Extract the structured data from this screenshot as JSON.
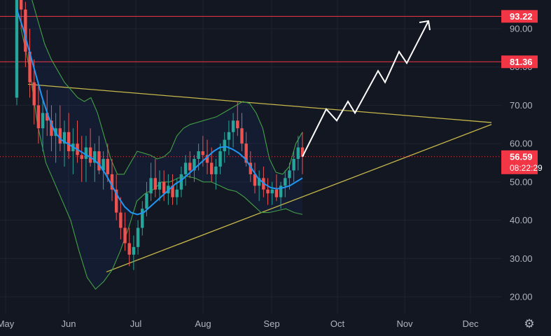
{
  "chart_data": {
    "type": "candlestick",
    "x_axis": {
      "labels": [
        "May",
        "Jun",
        "Jul",
        "Aug",
        "Sep",
        "Oct",
        "Nov",
        "Dec"
      ]
    },
    "y_axis": {
      "ticks": [
        "20.00",
        "30.00",
        "40.00",
        "50.00",
        "60.00",
        "70.00",
        "80.00",
        "90.00"
      ],
      "range": [
        15,
        97
      ]
    },
    "levels": [
      {
        "value": 93.22,
        "label": "93.22",
        "color": "#f23645"
      },
      {
        "value": 81.36,
        "label": "81.36",
        "color": "#f23645"
      }
    ],
    "last_price": {
      "value": 56.59,
      "label": "56.59",
      "countdown": "08:22:29",
      "color": "#f23645"
    },
    "candles_ohlc": [
      [
        72,
        100,
        70,
        98
      ],
      [
        98,
        100,
        90,
        95
      ],
      [
        95,
        97,
        80,
        84
      ],
      [
        84,
        90,
        72,
        76
      ],
      [
        76,
        82,
        65,
        70
      ],
      [
        70,
        76,
        60,
        64
      ],
      [
        64,
        72,
        58,
        68
      ],
      [
        68,
        74,
        62,
        66
      ],
      [
        66,
        70,
        58,
        62
      ],
      [
        62,
        68,
        55,
        64
      ],
      [
        64,
        70,
        58,
        60
      ],
      [
        60,
        66,
        54,
        63
      ],
      [
        63,
        68,
        56,
        58
      ],
      [
        58,
        64,
        52,
        60
      ],
      [
        60,
        66,
        55,
        57
      ],
      [
        57,
        62,
        50,
        56
      ],
      [
        56,
        62,
        50,
        59
      ],
      [
        59,
        64,
        54,
        55
      ],
      [
        55,
        60,
        50,
        58
      ],
      [
        58,
        62,
        52,
        53
      ],
      [
        53,
        58,
        48,
        56
      ],
      [
        56,
        60,
        50,
        52
      ],
      [
        52,
        56,
        45,
        48
      ],
      [
        48,
        52,
        40,
        42
      ],
      [
        42,
        46,
        35,
        38
      ],
      [
        38,
        42,
        32,
        34
      ],
      [
        34,
        38,
        28,
        31
      ],
      [
        31,
        36,
        27,
        33
      ],
      [
        33,
        40,
        31,
        38
      ],
      [
        38,
        45,
        36,
        43
      ],
      [
        43,
        50,
        41,
        47
      ],
      [
        47,
        55,
        45,
        51
      ],
      [
        51,
        56,
        46,
        48
      ],
      [
        48,
        53,
        45,
        50
      ],
      [
        50,
        53,
        45,
        47
      ],
      [
        47,
        52,
        44,
        49
      ],
      [
        49,
        52,
        44,
        46
      ],
      [
        46,
        51,
        44,
        48
      ],
      [
        48,
        54,
        46,
        52
      ],
      [
        52,
        57,
        49,
        55
      ],
      [
        55,
        58,
        51,
        53
      ],
      [
        53,
        57,
        50,
        56
      ],
      [
        56,
        60,
        53,
        58
      ],
      [
        58,
        62,
        54,
        57
      ],
      [
        57,
        61,
        52,
        55
      ],
      [
        55,
        59,
        50,
        52
      ],
      [
        52,
        56,
        48,
        54
      ],
      [
        54,
        60,
        52,
        58
      ],
      [
        58,
        63,
        55,
        61
      ],
      [
        61,
        66,
        57,
        63
      ],
      [
        63,
        68,
        59,
        66
      ],
      [
        66,
        71,
        62,
        64
      ],
      [
        64,
        68,
        58,
        60
      ],
      [
        60,
        63,
        54,
        55
      ],
      [
        55,
        58,
        50,
        52
      ],
      [
        52,
        55,
        47,
        49
      ],
      [
        49,
        53,
        45,
        51
      ],
      [
        51,
        54,
        46,
        48
      ],
      [
        48,
        51,
        44,
        47
      ],
      [
        47,
        50,
        44,
        48
      ],
      [
        48,
        52,
        45,
        46
      ],
      [
        46,
        50,
        43,
        49
      ],
      [
        49,
        53,
        46,
        51
      ],
      [
        51,
        55,
        48,
        53
      ],
      [
        53,
        58,
        50,
        56
      ],
      [
        56,
        62,
        53,
        59
      ],
      [
        59,
        63,
        52,
        56.59
      ]
    ],
    "ma_line": [
      95,
      90,
      84,
      78,
      72,
      67,
      63,
      61,
      60,
      59,
      58,
      57,
      56,
      54.5,
      52,
      49,
      46,
      43.5,
      42,
      41.5,
      42,
      43.5,
      45,
      46.5,
      48,
      49.5,
      50.5,
      52,
      53.5,
      55,
      56.5,
      58,
      59,
      59.2,
      58.5,
      57.5,
      56,
      53.5,
      51,
      49.5,
      48.5,
      48.2,
      48.5,
      49,
      50,
      51
    ],
    "upper_band": [
      100,
      100,
      98,
      92,
      86,
      82,
      79,
      76,
      74,
      72,
      71,
      72,
      68,
      62,
      56,
      52,
      52,
      55,
      58,
      57.5,
      57,
      56,
      56.5,
      58,
      62,
      64,
      65,
      65.5,
      66,
      66.5,
      67,
      68,
      69,
      70,
      71,
      70.5,
      68,
      64,
      56,
      52.5,
      52,
      54,
      60,
      63
    ],
    "lower_band": [
      90,
      80,
      65,
      55,
      50,
      45,
      40,
      32,
      25,
      22,
      24,
      27,
      32,
      38,
      45,
      47,
      48,
      50,
      50,
      51,
      51.5,
      51,
      50,
      50,
      49,
      48,
      47.5,
      46,
      44,
      42,
      42,
      42.5,
      43,
      42,
      41.5
    ],
    "projection": [
      [
        56.59
      ],
      [
        69
      ],
      [
        66
      ],
      [
        71
      ],
      [
        68
      ],
      [
        79
      ],
      [
        76
      ],
      [
        84
      ],
      [
        81
      ],
      [
        92
      ]
    ],
    "triangle": {
      "upper": [
        [
          75.5
        ],
        [
          65.5
        ]
      ],
      "lower": [
        [
          26.5
        ],
        [
          65
        ]
      ]
    }
  }
}
